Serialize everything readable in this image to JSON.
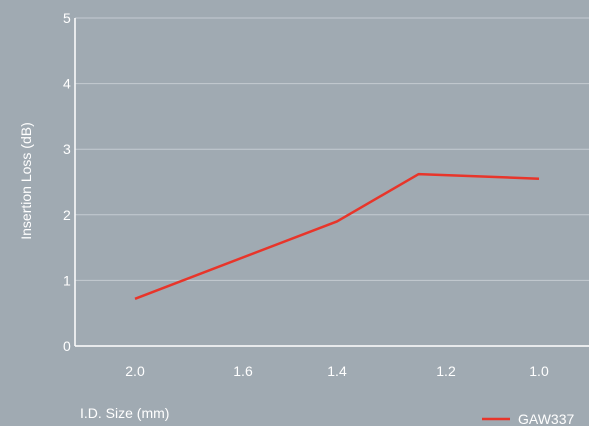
{
  "chart_data": {
    "type": "line",
    "title": "",
    "xlabel": "I.D. Size (mm)",
    "ylabel": "Insertion Loss (dB)",
    "categories": [
      "2.0",
      "1.6",
      "1.4",
      "1.2",
      "1.0"
    ],
    "ylim": [
      0,
      5
    ],
    "yticks": [
      "0",
      "1",
      "2",
      "3",
      "4",
      "5"
    ],
    "grid": true,
    "legend_position": "bottom-right",
    "series": [
      {
        "name": "GAW337",
        "color": "#e8352a",
        "x": [
          "2.0",
          "1.6",
          "1.4",
          "1.2",
          "1.0"
        ],
        "points": [
          {
            "x": 2.0,
            "y": 0.72
          },
          {
            "x": 1.4,
            "y": 1.9
          },
          {
            "x": 1.25,
            "y": 2.62
          },
          {
            "x": 1.0,
            "y": 2.55
          }
        ]
      }
    ],
    "colors": {
      "background": "#a0aab2",
      "grid": "#c4cbd1",
      "axis": "#ffffff",
      "text": "#ffffff"
    }
  }
}
